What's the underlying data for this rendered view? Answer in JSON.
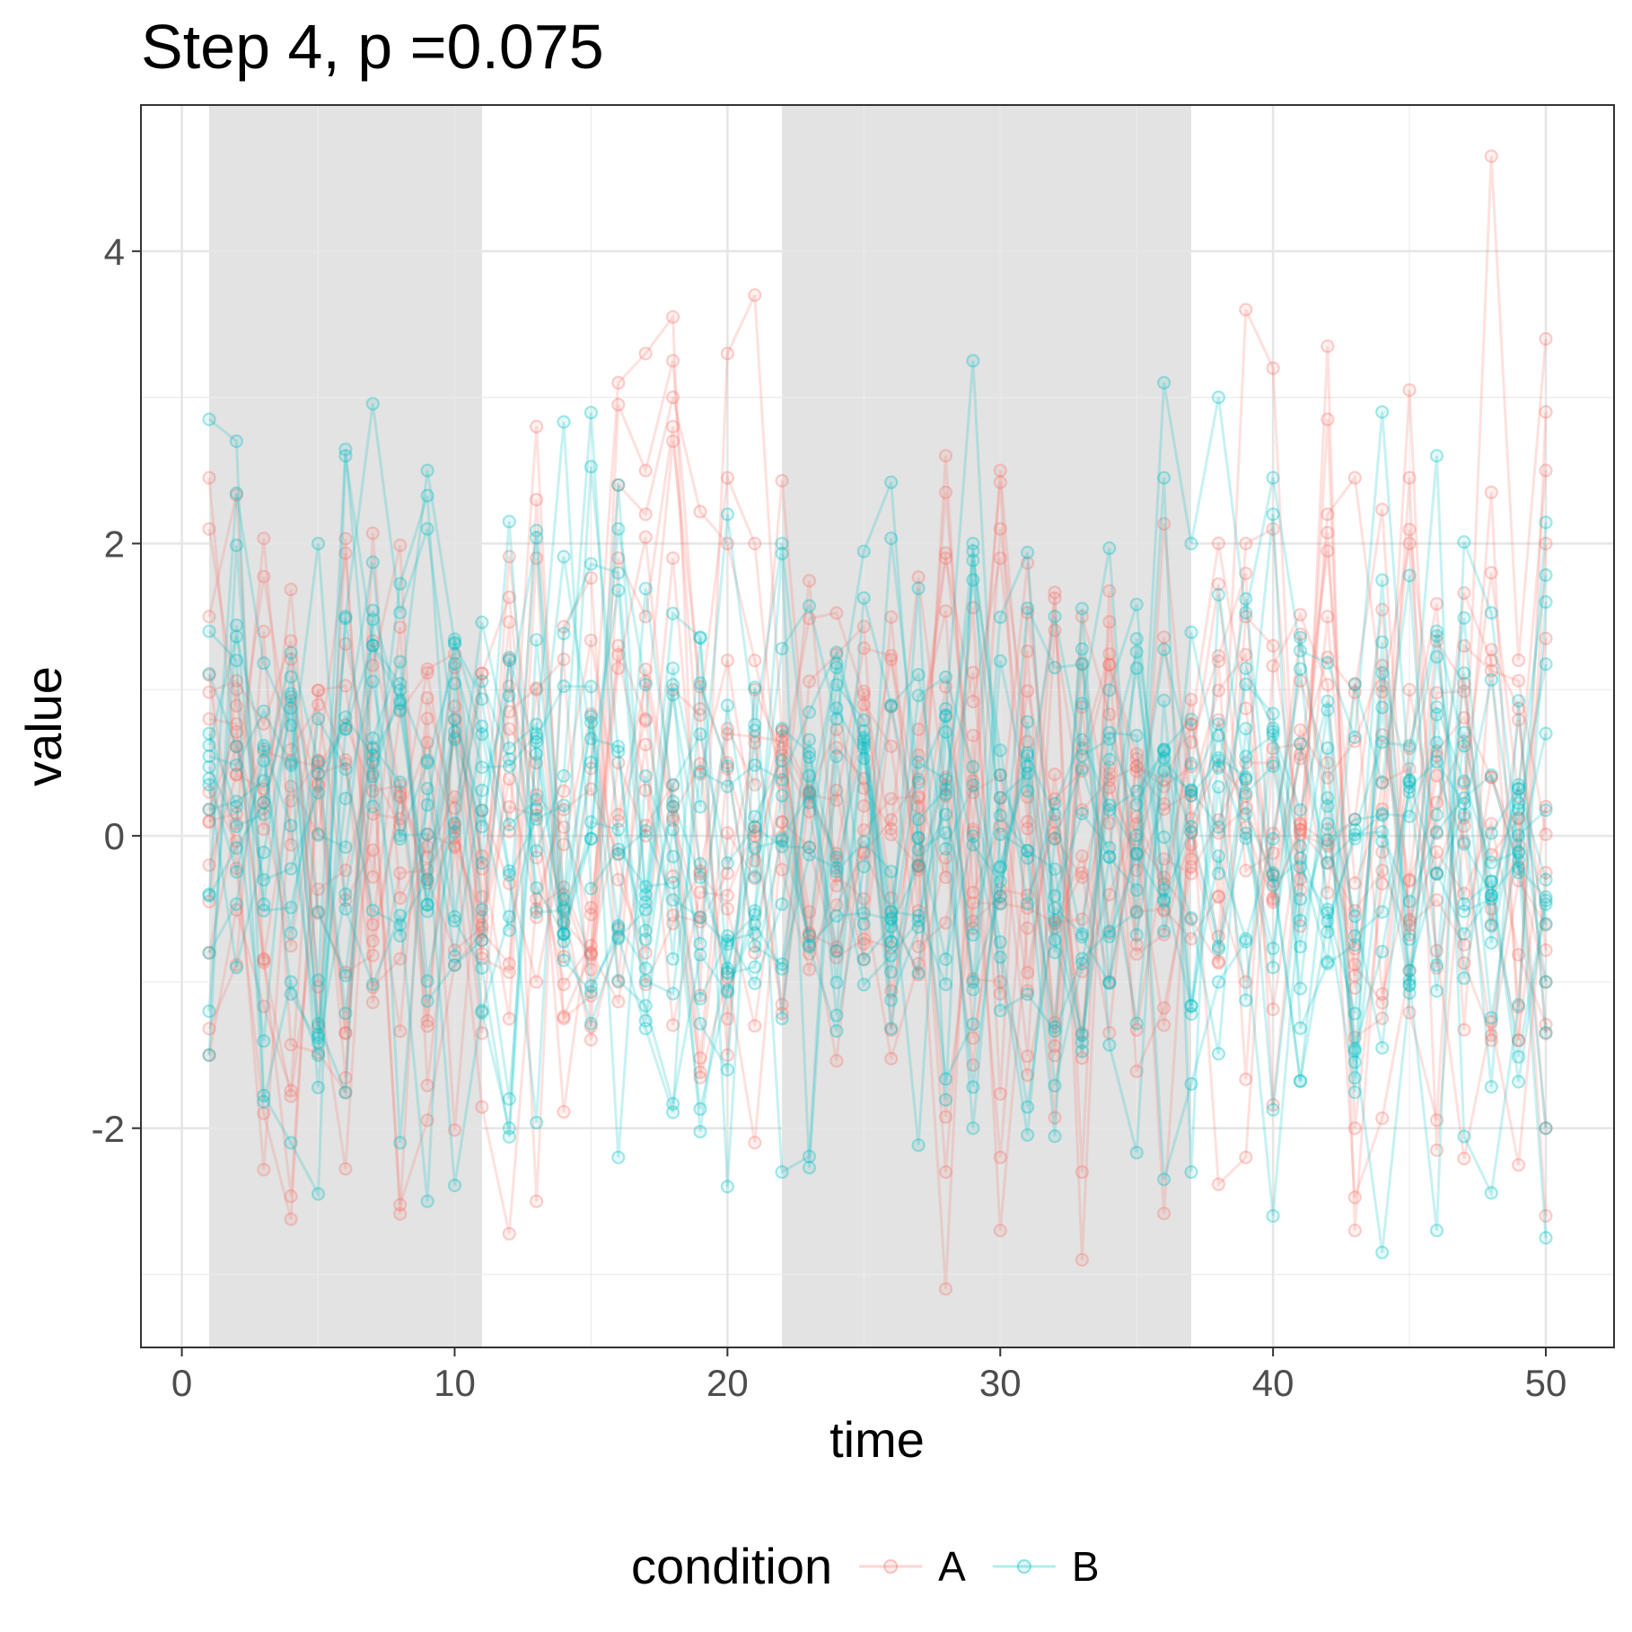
{
  "chart_data": {
    "type": "line",
    "title": "Step 4, p =0.075",
    "xlabel": "time",
    "ylabel": "value",
    "xlim": [
      -1.5,
      52.5
    ],
    "ylim": [
      -3.5,
      5.0
    ],
    "x_ticks": [
      0,
      10,
      20,
      30,
      40,
      50
    ],
    "x_tick_labels": [
      "0",
      "10",
      "20",
      "30",
      "40",
      "50"
    ],
    "y_ticks": [
      -2,
      0,
      2,
      4
    ],
    "y_tick_labels": [
      "-2",
      "0",
      "2",
      "4"
    ],
    "grid": true,
    "theme": "bw",
    "shaded_intervals": [
      [
        1,
        11
      ],
      [
        22,
        37
      ]
    ],
    "x_range": [
      1,
      50
    ],
    "series_per_condition": 15,
    "legend": {
      "title": "condition",
      "position": "bottom",
      "entries": [
        {
          "label": "A",
          "color": "#F8766D"
        },
        {
          "label": "B",
          "color": "#00BFC4"
        }
      ]
    },
    "series_groups": [
      {
        "name": "A",
        "color": "#F8766D",
        "values_by_time": {
          "1": [
            2.45,
            1.5,
            1.1,
            0.8,
            0.3,
            0.1,
            -0.2,
            -0.8,
            -1.5,
            2.1
          ],
          "13": [
            2.8,
            2.3,
            1.9,
            1.0,
            0.5,
            -0.5,
            -1.0,
            -2.5
          ],
          "16": [
            3.1,
            2.95,
            2.4,
            1.9,
            1.3,
            0.5,
            -0.3,
            -1.0
          ],
          "17": [
            3.3,
            2.5,
            2.2,
            1.5,
            0.8,
            0.0,
            -0.8
          ],
          "18": [
            3.55,
            3.25,
            3.0,
            2.8,
            2.7,
            1.9,
            1.0,
            0.2,
            -0.6
          ],
          "20": [
            3.3,
            2.45,
            2.0,
            1.2,
            0.5,
            -0.5,
            -1.5
          ],
          "21": [
            3.7,
            2.0,
            1.2,
            0.0,
            -0.8,
            -1.3
          ],
          "28": [
            -3.1,
            -2.3,
            1.9,
            2.35
          ],
          "30": [
            -2.7,
            -2.2,
            1.9,
            2.5
          ],
          "33": [
            -2.9,
            -2.3,
            1.5
          ],
          "39": [
            3.6,
            2.0,
            1.5,
            0.5,
            -1.0,
            -2.2
          ],
          "40": [
            3.2,
            2.1,
            1.3,
            0.5
          ],
          "42": [
            3.35,
            2.85,
            2.2,
            1.5,
            0.5
          ],
          "43": [
            -2.7,
            -2.0,
            2.45
          ],
          "45": [
            3.05,
            2.45,
            2.0,
            1.0
          ],
          "48": [
            4.65,
            2.35,
            1.8,
            1.2,
            0.4,
            -0.5
          ],
          "50": [
            3.4,
            2.9,
            2.5,
            2.0,
            1.35,
            0.2,
            -1.0,
            -2.0,
            -2.6
          ]
        }
      },
      {
        "name": "B",
        "color": "#00BFC4",
        "values_by_time": {
          "1": [
            2.85,
            1.4,
            0.7,
            0.35,
            -0.4,
            -0.8,
            -1.2,
            -1.5
          ],
          "2": [
            2.7,
            1.2,
            0.2,
            -0.9
          ],
          "4": [
            -2.1,
            -1.0,
            0.5
          ],
          "5": [
            -2.45,
            -1.5,
            2.0
          ],
          "6": [
            2.6,
            1.5,
            -0.5
          ],
          "9": [
            2.5,
            2.1,
            -2.5
          ],
          "12": [
            2.15,
            1.2,
            -1.8,
            -2.0
          ],
          "16": [
            2.4,
            2.1,
            -2.2
          ],
          "20": [
            2.2,
            -2.4,
            -1.6
          ],
          "22": [
            2.0,
            -2.3,
            -1.25
          ],
          "29": [
            3.25,
            2.0,
            -2.0
          ],
          "36": [
            3.1,
            2.45,
            -2.35
          ],
          "37": [
            2.0,
            -2.3
          ],
          "38": [
            3.0,
            1.65,
            -1.0
          ],
          "40": [
            2.45,
            2.2,
            -2.6
          ],
          "44": [
            2.9,
            1.75,
            -2.85
          ],
          "46": [
            2.6,
            -2.7
          ],
          "50": [
            1.6,
            0.7,
            -0.3,
            -1.0,
            -2.0,
            -2.75
          ]
        }
      }
    ]
  }
}
